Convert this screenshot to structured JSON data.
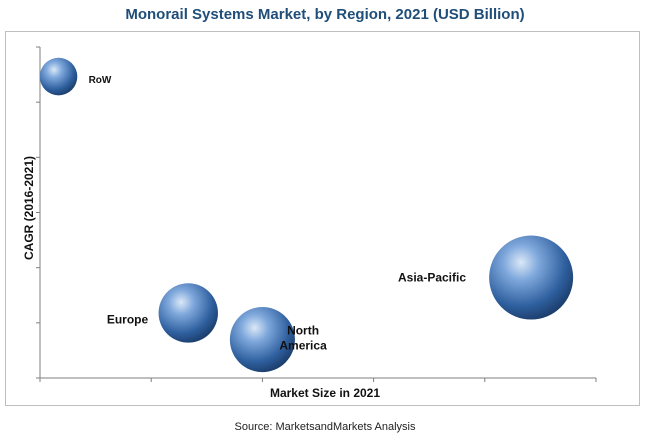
{
  "chart_data": {
    "type": "bubble",
    "title": "Monorail Systems Market, by Region, 2021 (USD Billion)",
    "xlabel": "Market Size in 2021",
    "ylabel": "CAGR (2016-2021)",
    "source": "Source: MarketsandMarkets Analysis",
    "axis_tick_labels_shown": false,
    "grid": false,
    "bubble_color": "#3a6fb0",
    "series": [
      {
        "points": [
          {
            "label": "RoW",
            "x": 0.2,
            "y": 5.1,
            "size": 0.2
          },
          {
            "label": "Europe",
            "x": 1.6,
            "y": 1.1,
            "size": 0.5
          },
          {
            "label": "North America",
            "x": 2.4,
            "y": 0.65,
            "size": 0.6
          },
          {
            "label": "Asia-Pacific",
            "x": 5.3,
            "y": 1.7,
            "size": 1.0
          }
        ]
      }
    ],
    "xlim": [
      0,
      6
    ],
    "ylim": [
      0,
      5.6
    ]
  }
}
